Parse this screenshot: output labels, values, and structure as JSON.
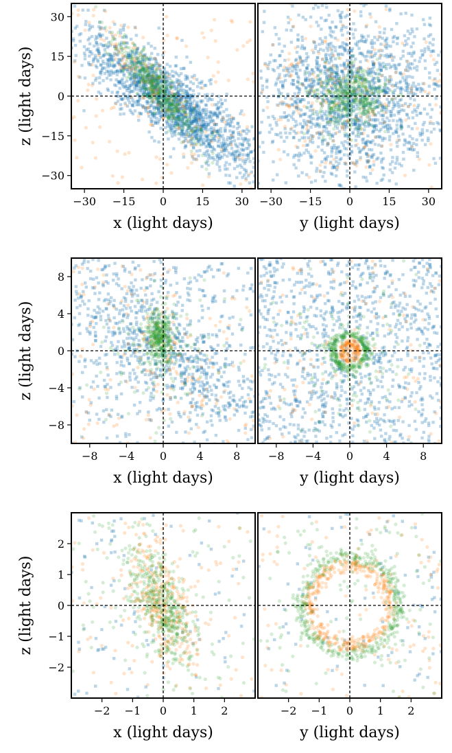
{
  "chart_data": [
    {
      "type": "scatter",
      "row": 0,
      "col": 0,
      "xlabel": "x (light days)",
      "ylabel": "z (light days)",
      "xlim": [
        -35,
        35
      ],
      "ylim": [
        -35,
        35
      ],
      "xticks": [
        -30,
        -15,
        0,
        15,
        30
      ],
      "yticks": [
        30,
        15,
        0,
        -15,
        -30
      ],
      "xtick_labels": [
        "−30",
        "−15",
        "0",
        "15",
        "30"
      ],
      "ytick_labels": [
        "30",
        "15",
        "0",
        "−15",
        "−30"
      ],
      "crosshair": [
        0,
        0
      ],
      "series": [
        {
          "color": "#1f77b4",
          "shape": "square",
          "distribution": "diagonal band from upper-left to lower-right, dense near center",
          "count": 1700
        },
        {
          "color": "#ff7f0e",
          "shape": "circle",
          "distribution": "sparse, concentrated along upper-left band near center",
          "count": 260
        },
        {
          "color": "#2ca02c",
          "shape": "circle",
          "distribution": "dense clump along upper-left band near center",
          "count": 420
        }
      ]
    },
    {
      "type": "scatter",
      "row": 0,
      "col": 1,
      "xlabel": "y (light days)",
      "ylabel": "",
      "xlim": [
        -35,
        35
      ],
      "ylim": [
        -35,
        35
      ],
      "xticks": [
        -30,
        -15,
        0,
        15,
        30
      ],
      "yticks": [],
      "xtick_labels": [
        "−30",
        "−15",
        "0",
        "15",
        "30"
      ],
      "ytick_labels": [],
      "crosshair": [
        0,
        0
      ],
      "series": [
        {
          "color": "#1f77b4",
          "shape": "square",
          "distribution": "broad cloud centered at origin",
          "count": 1700
        },
        {
          "color": "#ff7f0e",
          "shape": "circle",
          "distribution": "sparse cloud centered at origin",
          "count": 260
        },
        {
          "color": "#2ca02c",
          "shape": "circle",
          "distribution": "dense clump at origin",
          "count": 420
        }
      ]
    },
    {
      "type": "scatter",
      "row": 1,
      "col": 0,
      "xlabel": "x (light days)",
      "ylabel": "z (light days)",
      "xlim": [
        -10,
        10
      ],
      "ylim": [
        -10,
        10
      ],
      "xticks": [
        -8,
        -4,
        0,
        4,
        8
      ],
      "yticks": [
        8,
        4,
        0,
        -4,
        -8
      ],
      "xtick_labels": [
        "−8",
        "−4",
        "0",
        "4",
        "8"
      ],
      "ytick_labels": [
        "8",
        "4",
        "0",
        "−4",
        "−8"
      ],
      "crosshair": [
        0,
        0
      ],
      "series": [
        {
          "color": "#1f77b4",
          "shape": "square",
          "distribution": "diagonal band upper-left to lower-right",
          "count": 1000
        },
        {
          "color": "#ff7f0e",
          "shape": "circle",
          "distribution": "sparse scatter",
          "count": 200
        },
        {
          "color": "#2ca02c",
          "shape": "circle",
          "distribution": "dense elongated clump just left of x=0, z 0 to 3",
          "count": 450
        }
      ]
    },
    {
      "type": "scatter",
      "row": 1,
      "col": 1,
      "xlabel": "y (light days)",
      "ylabel": "",
      "xlim": [
        -10,
        10
      ],
      "ylim": [
        -10,
        10
      ],
      "xticks": [
        -8,
        -4,
        0,
        4,
        8
      ],
      "yticks": [],
      "xtick_labels": [
        "−8",
        "−4",
        "0",
        "4",
        "8"
      ],
      "ytick_labels": [],
      "crosshair": [
        0,
        0
      ],
      "series": [
        {
          "color": "#1f77b4",
          "shape": "square",
          "distribution": "uniform background cloud",
          "count": 1000
        },
        {
          "color": "#ff7f0e",
          "shape": "circle",
          "distribution": "small ring of radius about 1 at origin",
          "count": 260
        },
        {
          "color": "#2ca02c",
          "shape": "circle",
          "distribution": "ring of radius about 1.5 surrounding origin",
          "count": 420
        }
      ]
    },
    {
      "type": "scatter",
      "row": 2,
      "col": 0,
      "xlabel": "x (light days)",
      "ylabel": "z (light days)",
      "xlim": [
        -3,
        3
      ],
      "ylim": [
        -3,
        3
      ],
      "xticks": [
        -2,
        -1,
        0,
        1,
        2
      ],
      "yticks": [
        2,
        1,
        0,
        -1,
        -2
      ],
      "xtick_labels": [
        "−2",
        "−1",
        "0",
        "1",
        "2"
      ],
      "ytick_labels": [
        "2",
        "1",
        "0",
        "−1",
        "−2"
      ],
      "crosshair": [
        0,
        0
      ],
      "series": [
        {
          "color": "#1f77b4",
          "shape": "square",
          "distribution": "sparse background",
          "count": 90
        },
        {
          "color": "#ff7f0e",
          "shape": "circle",
          "distribution": "tilted elongated ellipse, upper-left to lower-right",
          "count": 380
        },
        {
          "color": "#2ca02c",
          "shape": "circle",
          "distribution": "tilted elongated ellipse, upper-left to lower-right",
          "count": 520
        }
      ]
    },
    {
      "type": "scatter",
      "row": 2,
      "col": 1,
      "xlabel": "y (light days)",
      "ylabel": "",
      "xlim": [
        -3,
        3
      ],
      "ylim": [
        -3,
        3
      ],
      "xticks": [
        -2,
        -1,
        0,
        1,
        2
      ],
      "yticks": [],
      "xtick_labels": [
        "−2",
        "−1",
        "0",
        "1",
        "2"
      ],
      "ytick_labels": [],
      "crosshair": [
        0,
        0
      ],
      "series": [
        {
          "color": "#1f77b4",
          "shape": "square",
          "distribution": "sparse background",
          "count": 90
        },
        {
          "color": "#ff7f0e",
          "shape": "circle",
          "distribution": "ring of radius about 1.3 centered on origin",
          "count": 480
        },
        {
          "color": "#2ca02c",
          "shape": "circle",
          "distribution": "ring of radius about 1.6 centered on origin",
          "count": 520
        }
      ]
    }
  ]
}
